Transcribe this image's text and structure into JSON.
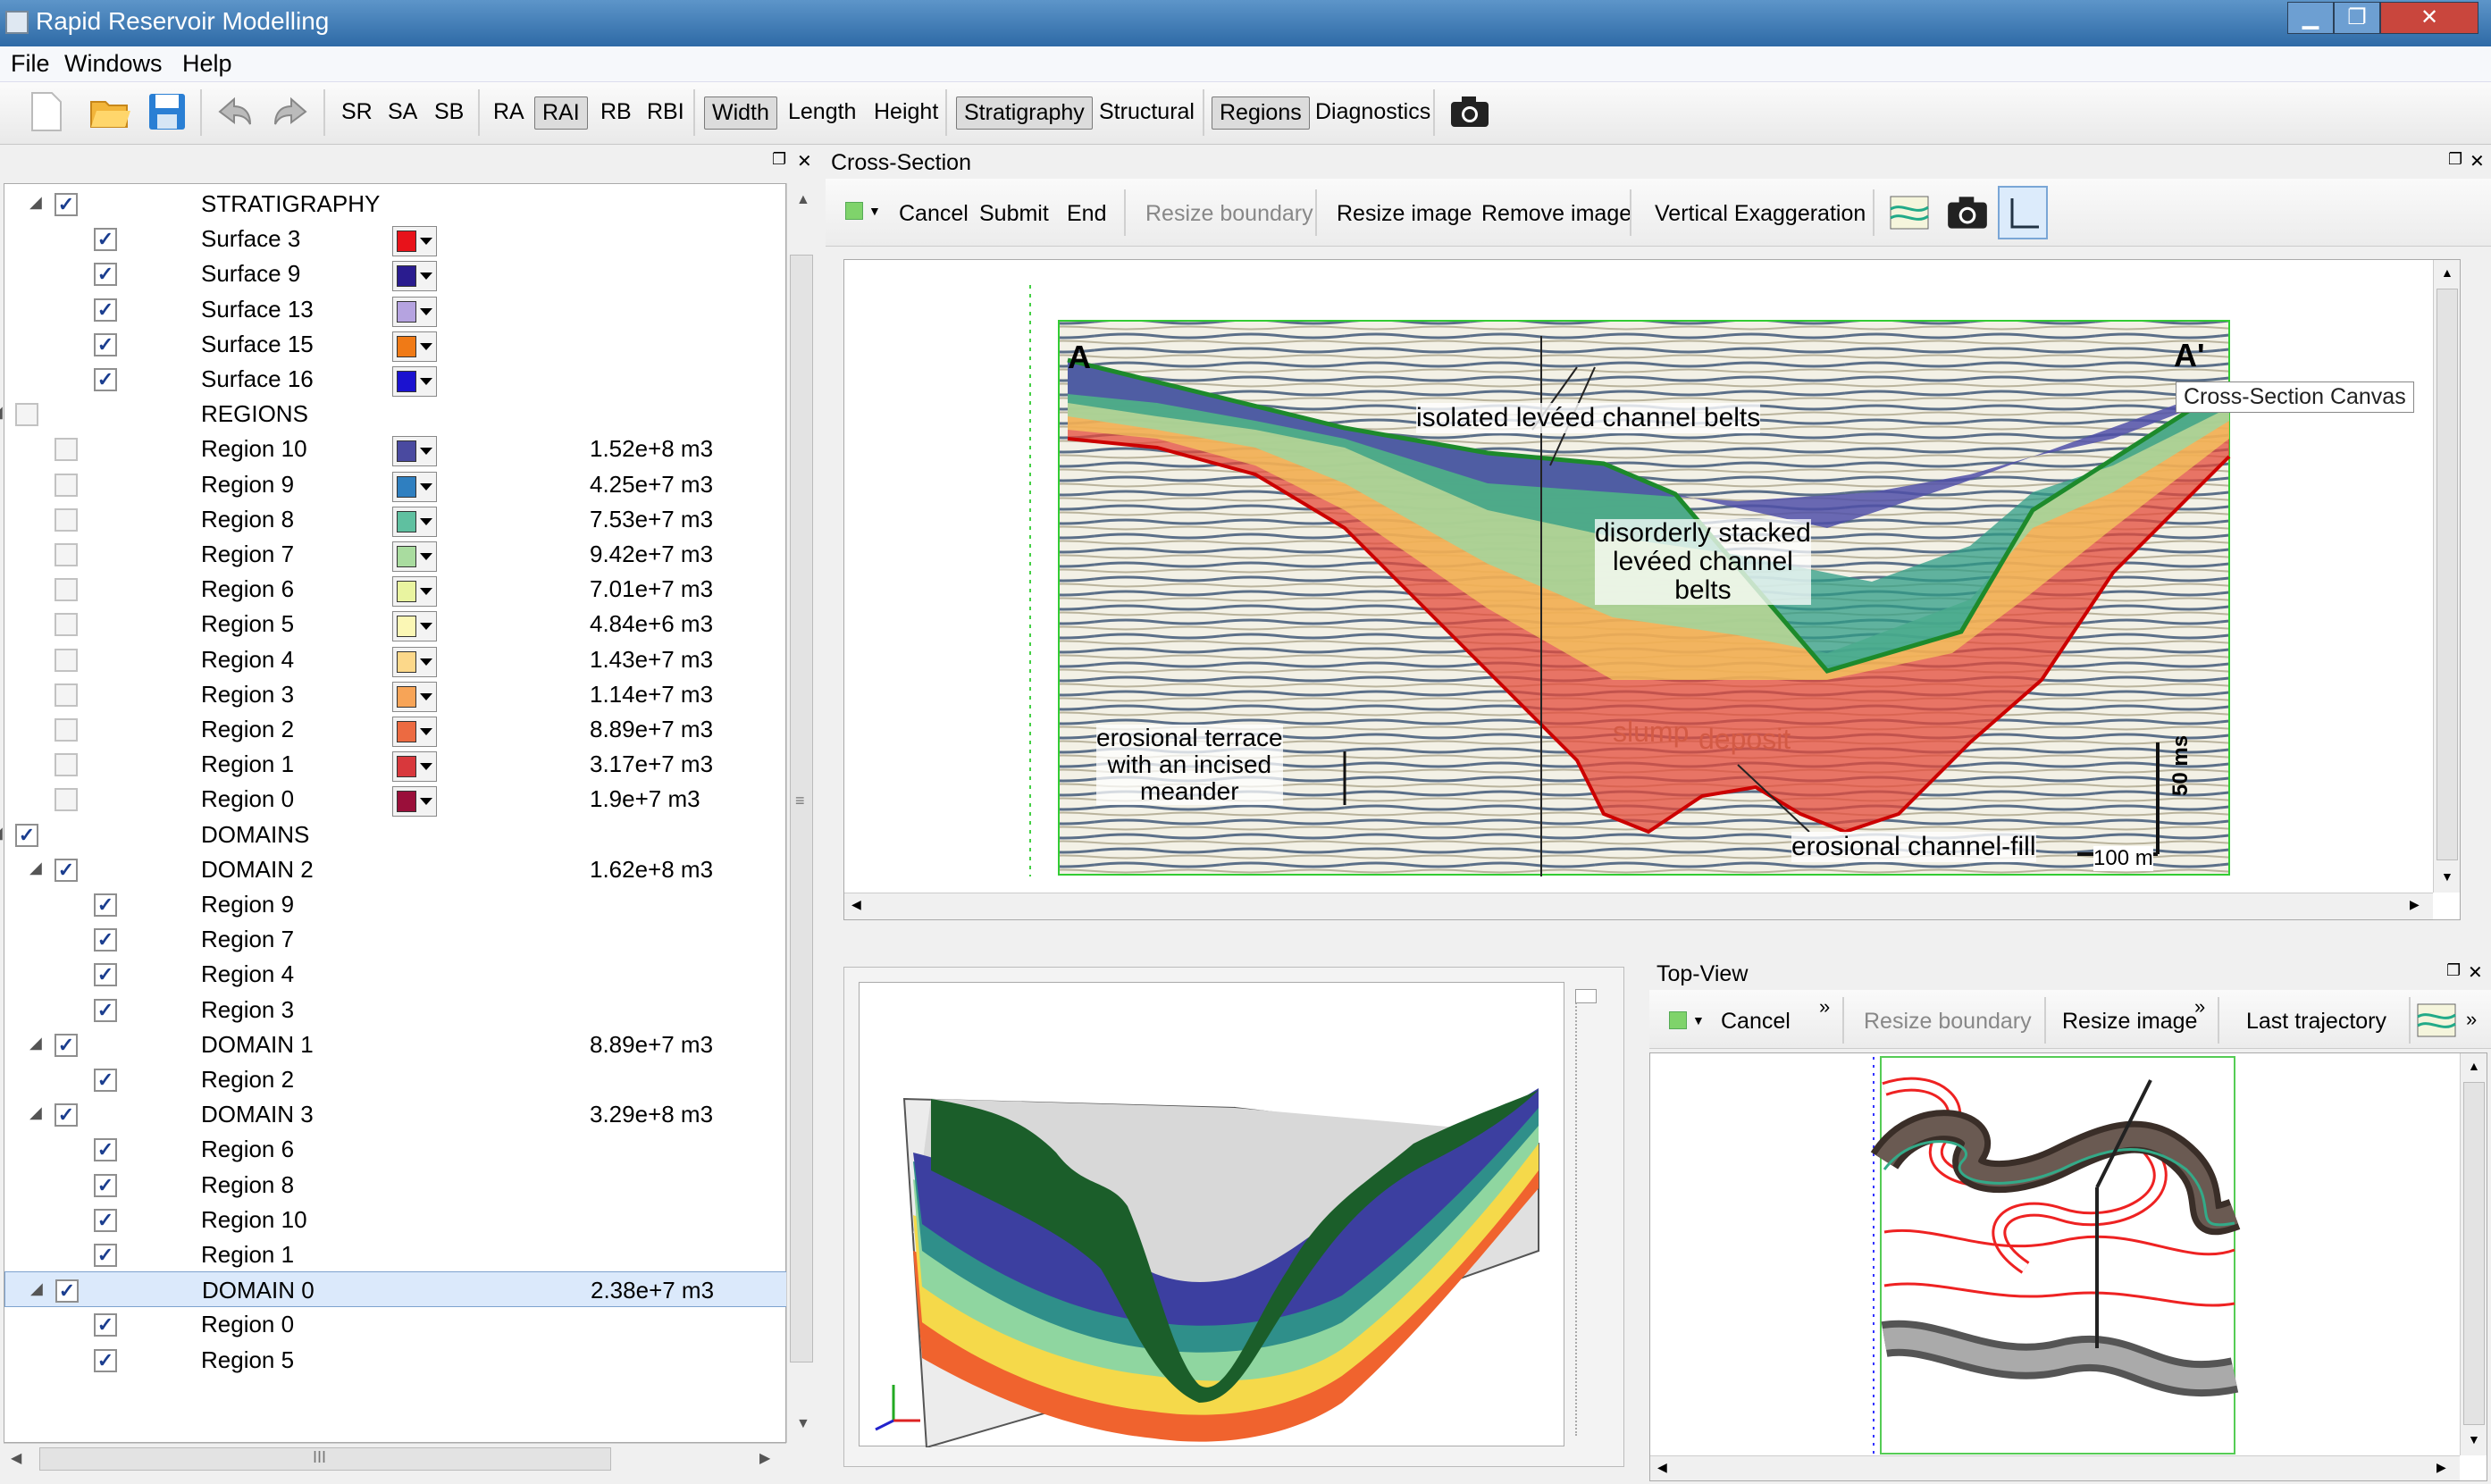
{
  "window": {
    "title": "Rapid Reservoir Modelling",
    "min": "▁",
    "max": "❐",
    "close": "✕"
  },
  "menu": [
    "File",
    "Windows",
    "Help"
  ],
  "toolbar": {
    "sr": "SR",
    "sa": "SA",
    "sb": "SB",
    "ra": "RA",
    "rai": "RAI",
    "rb": "RB",
    "rbi": "RBI",
    "width": "Width",
    "length": "Length",
    "height": "Height",
    "stratigraphy": "Stratigraphy",
    "structural": "Structural",
    "regions": "Regions",
    "diagnostics": "Diagnostics"
  },
  "tree": [
    {
      "label": "STRATIGRAPHY",
      "checked": true,
      "level": 1,
      "expand": true
    },
    {
      "label": "Surface 3",
      "checked": true,
      "level": 2,
      "color": "#e8121a"
    },
    {
      "label": "Surface 9",
      "checked": true,
      "level": 2,
      "color": "#2a1c8f"
    },
    {
      "label": "Surface 13",
      "checked": true,
      "level": 2,
      "color": "#b5a3e0"
    },
    {
      "label": "Surface 15",
      "checked": true,
      "level": 2,
      "color": "#f07a16"
    },
    {
      "label": "Surface 16",
      "checked": true,
      "level": 2,
      "color": "#1b12d0"
    },
    {
      "label": "REGIONS",
      "checked": false,
      "level": 0,
      "expand": true
    },
    {
      "label": "Region 10",
      "checked": false,
      "level": 1,
      "color": "#4a4aa0",
      "value": "1.52e+8 m3"
    },
    {
      "label": "Region 9",
      "checked": false,
      "level": 1,
      "color": "#2f7fc0",
      "value": "4.25e+7 m3"
    },
    {
      "label": "Region 8",
      "checked": false,
      "level": 1,
      "color": "#5fc0a0",
      "value": "7.53e+7 m3"
    },
    {
      "label": "Region 7",
      "checked": false,
      "level": 1,
      "color": "#a9dc9f",
      "value": "9.42e+7 m3"
    },
    {
      "label": "Region 6",
      "checked": false,
      "level": 1,
      "color": "#e9f4a0",
      "value": "7.01e+7 m3"
    },
    {
      "label": "Region 5",
      "checked": false,
      "level": 1,
      "color": "#fbf7b5",
      "value": "4.84e+6 m3"
    },
    {
      "label": "Region 4",
      "checked": false,
      "level": 1,
      "color": "#fcd88a",
      "value": "1.43e+7 m3"
    },
    {
      "label": "Region 3",
      "checked": false,
      "level": 1,
      "color": "#f7a457",
      "value": "1.14e+7 m3"
    },
    {
      "label": "Region 2",
      "checked": false,
      "level": 1,
      "color": "#ec6a41",
      "value": "8.89e+7 m3"
    },
    {
      "label": "Region 1",
      "checked": false,
      "level": 1,
      "color": "#d8383c",
      "value": "3.17e+7 m3"
    },
    {
      "label": "Region 0",
      "checked": false,
      "level": 1,
      "color": "#9a0f3a",
      "value": "1.9e+7 m3"
    },
    {
      "label": "DOMAINS",
      "checked": true,
      "level": 0,
      "expand": true
    },
    {
      "label": "DOMAIN 2",
      "checked": true,
      "level": 1,
      "expand": true,
      "value": "1.62e+8 m3"
    },
    {
      "label": "Region 9",
      "checked": true,
      "level": 2
    },
    {
      "label": "Region 7",
      "checked": true,
      "level": 2
    },
    {
      "label": "Region 4",
      "checked": true,
      "level": 2
    },
    {
      "label": "Region 3",
      "checked": true,
      "level": 2
    },
    {
      "label": "DOMAIN 1",
      "checked": true,
      "level": 1,
      "expand": true,
      "value": "8.89e+7 m3"
    },
    {
      "label": "Region 2",
      "checked": true,
      "level": 2
    },
    {
      "label": "DOMAIN 3",
      "checked": true,
      "level": 1,
      "expand": true,
      "value": "3.29e+8 m3"
    },
    {
      "label": "Region 6",
      "checked": true,
      "level": 2
    },
    {
      "label": "Region 8",
      "checked": true,
      "level": 2
    },
    {
      "label": "Region 10",
      "checked": true,
      "level": 2
    },
    {
      "label": "Region 1",
      "checked": true,
      "level": 2
    },
    {
      "label": "DOMAIN 0",
      "checked": true,
      "level": 1,
      "expand": true,
      "value": "2.38e+7 m3",
      "selected": true
    },
    {
      "label": "Region 0",
      "checked": true,
      "level": 2
    },
    {
      "label": "Region 5",
      "checked": true,
      "level": 2
    }
  ],
  "cross_section": {
    "title": "Cross-Section",
    "cancel": "Cancel",
    "submit": "Submit",
    "end": "End",
    "resize_boundary": "Resize boundary",
    "resize_image": "Resize image",
    "remove_image": "Remove image",
    "vertical_exaggeration": "Vertical Exaggeration",
    "tooltip": "Cross-Section Canvas",
    "image_labels": {
      "a": "A",
      "a_prime": "A'",
      "isolated": "isolated levéed channel belts",
      "disorderly1": "disorderly stacked",
      "disorderly2": "levéed channel",
      "disorderly3": "belts",
      "slump1": "slump",
      "slump2": "deposit",
      "terrace1": "erosional terrace",
      "terrace2": "with an incised",
      "terrace3": "meander",
      "channel_fill": "erosional channel-fill",
      "scale_v": "50 ms",
      "scale_h": "100 m"
    }
  },
  "top_view": {
    "title": "Top-View",
    "cancel": "Cancel",
    "resize_boundary": "Resize boundary",
    "resize_image": "Resize image",
    "last_trajectory": "Last trajectory",
    "more": "»"
  },
  "scroll": {
    "grip": "III",
    "grip_v": "≡"
  }
}
